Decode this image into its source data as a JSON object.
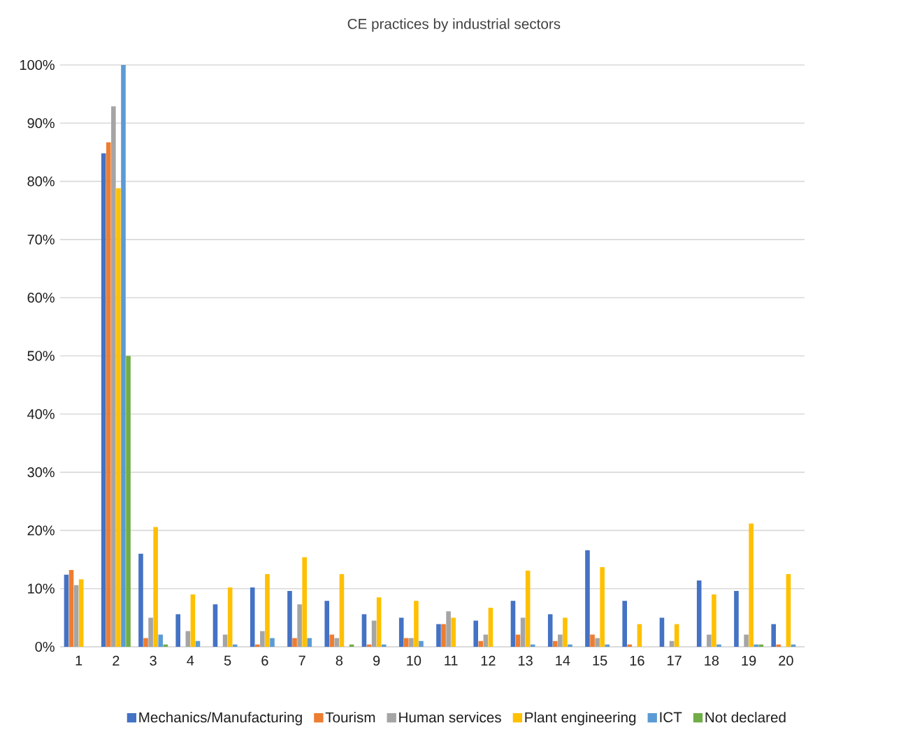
{
  "chart_data": {
    "type": "bar",
    "title": "CE practices by industrial sectors",
    "categories": [
      "1",
      "2",
      "3",
      "4",
      "5",
      "6",
      "7",
      "8",
      "9",
      "10",
      "11",
      "12",
      "13",
      "14",
      "15",
      "16",
      "17",
      "18",
      "19",
      "20"
    ],
    "series": [
      {
        "name": "Mechanics/Manufacturing",
        "color": "#4472c4",
        "values": [
          12.4,
          84.8,
          16.0,
          5.6,
          7.3,
          10.2,
          9.6,
          7.9,
          5.6,
          5.0,
          3.9,
          4.5,
          7.9,
          5.6,
          16.6,
          7.9,
          5.0,
          11.4,
          9.6,
          3.9
        ]
      },
      {
        "name": "Tourism",
        "color": "#ed7d31",
        "values": [
          13.2,
          86.7,
          1.5,
          0,
          0,
          0.4,
          1.5,
          2.1,
          0.4,
          1.5,
          3.9,
          1.0,
          2.1,
          1.0,
          2.1,
          0.4,
          0,
          0,
          0,
          0.4
        ]
      },
      {
        "name": "Human services",
        "color": "#a5a5a5",
        "values": [
          10.6,
          92.9,
          5.0,
          2.7,
          2.1,
          2.7,
          7.3,
          1.5,
          4.5,
          1.5,
          6.1,
          2.1,
          5.0,
          2.1,
          1.5,
          0,
          1.0,
          2.1,
          2.1,
          0
        ]
      },
      {
        "name": "Plant engineering",
        "color": "#ffc000",
        "values": [
          11.6,
          78.8,
          20.6,
          9.0,
          10.2,
          12.5,
          15.4,
          12.5,
          8.5,
          7.9,
          5.0,
          6.7,
          13.1,
          5.0,
          13.7,
          3.9,
          3.9,
          9.0,
          21.2,
          12.5
        ]
      },
      {
        "name": "ICT",
        "color": "#5b9bd5",
        "values": [
          0,
          100,
          2.1,
          1.0,
          0.4,
          1.5,
          1.5,
          0,
          0.4,
          1.0,
          0,
          0,
          0.4,
          0.4,
          0.4,
          0,
          0,
          0.4,
          0.4,
          0.4
        ]
      },
      {
        "name": "Not declared",
        "color": "#70ad47",
        "values": [
          0,
          50,
          0.4,
          0,
          0,
          0,
          0,
          0.4,
          0,
          0,
          0,
          0,
          0,
          0,
          0,
          0,
          0,
          0,
          0.4,
          0
        ]
      }
    ],
    "ylim": [
      0,
      100
    ],
    "yticks": [
      {
        "value": 0,
        "label": "0%"
      },
      {
        "value": 10,
        "label": "10%"
      },
      {
        "value": 20,
        "label": "20%"
      },
      {
        "value": 30,
        "label": "30%"
      },
      {
        "value": 40,
        "label": "40%"
      },
      {
        "value": 50,
        "label": "50%"
      },
      {
        "value": 60,
        "label": "60%"
      },
      {
        "value": 70,
        "label": "70%"
      },
      {
        "value": 80,
        "label": "80%"
      },
      {
        "value": 90,
        "label": "90%"
      },
      {
        "value": 100,
        "label": "100%"
      }
    ],
    "grid": "y",
    "legend": "bottom"
  }
}
